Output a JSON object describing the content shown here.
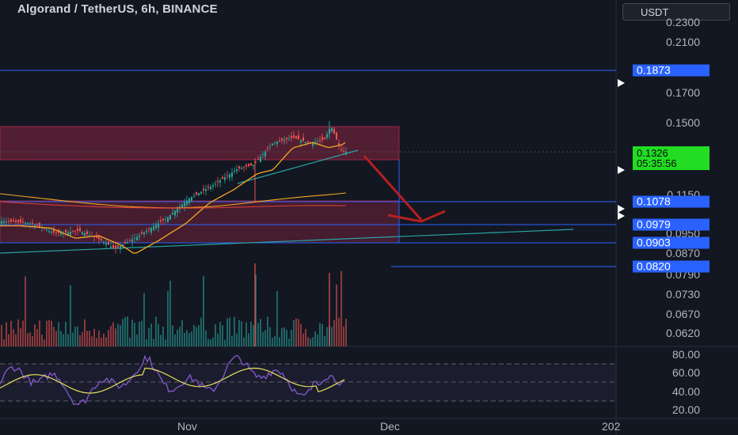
{
  "header": {
    "title": "Algorand / TetherUS, 6h, BINANCE",
    "currency": "USDT"
  },
  "price_axis": {
    "ticks": [
      "0.2300",
      "0.2100",
      "0.1700",
      "0.1500",
      "0.1150",
      "0.0950",
      "0.0870",
      "0.0790",
      "0.0730",
      "0.0670",
      "0.0620"
    ],
    "levels": [
      "0.1873",
      "0.1078",
      "0.0979",
      "0.0903",
      "0.0820"
    ],
    "current_price": "0.1326",
    "countdown": "05:35:56"
  },
  "rsi_axis": {
    "ticks": [
      "80.00",
      "60.00",
      "40.00",
      "20.00"
    ]
  },
  "time_axis": {
    "labels": [
      "Nov",
      "Dec",
      "202"
    ]
  },
  "colors": {
    "background": "#131722",
    "level_tag": "#2962ff",
    "current_price_tag": "#22dd22",
    "candle_up": "#26a69a",
    "candle_down": "#ef5350",
    "zone_fill": "#b22a4a",
    "ma_fast": "#f5a623",
    "ma_slow": "#e0413a",
    "arrow": "#b51f1f",
    "rsi_line": "#7e57c2",
    "rsi_ma": "#e8e25a"
  },
  "chart_data": {
    "type": "candlestick",
    "symbol": "ALGO/USDT",
    "interval": "6h",
    "exchange": "BINANCE",
    "y_scale": "log",
    "price_approx": [
      [
        "Oct start",
        0.1
      ],
      [
        "Oct mid",
        0.097
      ],
      [
        "late Oct low",
        0.089
      ],
      [
        "Nov",
        0.094
      ],
      [
        "early Nov",
        0.112
      ],
      [
        "mid Nov",
        0.128
      ],
      [
        "Nov 20",
        0.145
      ],
      [
        "Nov 24",
        0.149
      ],
      [
        "Nov 26",
        0.133
      ]
    ],
    "horizontal_levels": [
      0.1873,
      0.1078,
      0.0979,
      0.0903,
      0.082
    ],
    "zones": [
      {
        "from": 0.128,
        "to": 0.146
      },
      {
        "from": 0.0903,
        "to": 0.1078
      }
    ],
    "annotation": "Downward arrow projecting a drop from ~0.131 toward ~0.0979",
    "indicators": [
      "moving averages",
      "volume",
      "RSI"
    ],
    "rsi_range": [
      20,
      80
    ]
  }
}
